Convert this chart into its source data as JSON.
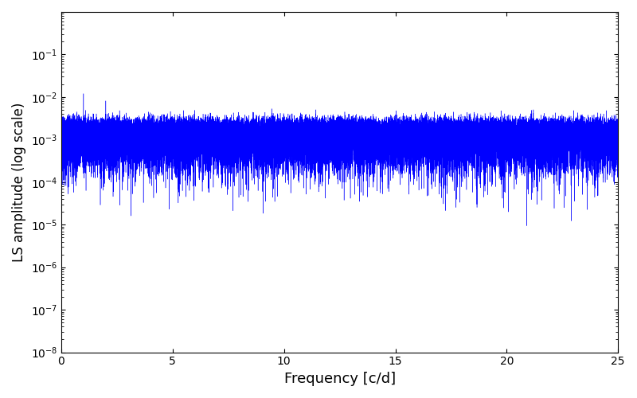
{
  "title": "",
  "xlabel": "Frequency [c/d]",
  "ylabel": "LS amplitude (log scale)",
  "xlim": [
    0,
    25
  ],
  "ylim": [
    1e-08,
    1
  ],
  "xmin": 0,
  "xmax": 25,
  "line_color": "#0000ff",
  "background_color": "#ffffff",
  "figsize": [
    8.0,
    5.0
  ],
  "dpi": 100,
  "num_points": 50000,
  "seed": 1234,
  "yticks": [
    1e-08,
    1e-07,
    1e-06,
    1e-05,
    0.0001,
    0.001,
    0.01,
    0.1
  ],
  "xticks": [
    0,
    5,
    10,
    15,
    20,
    25
  ]
}
